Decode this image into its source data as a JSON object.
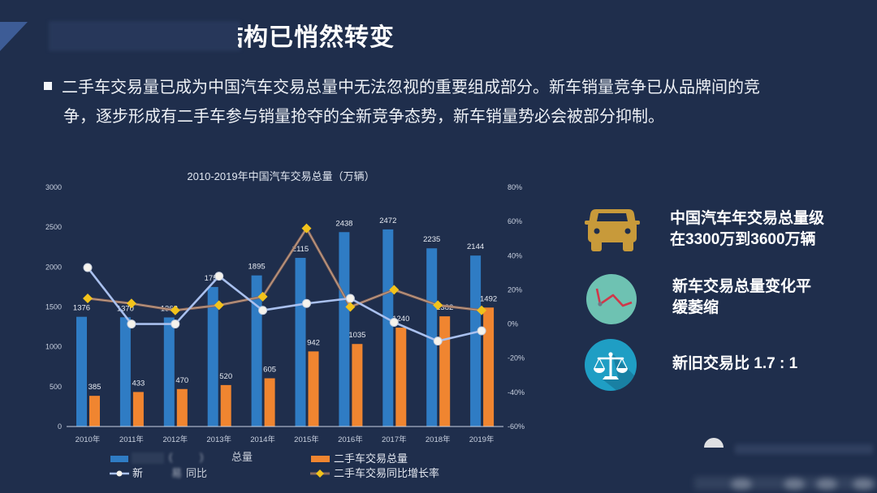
{
  "heading": {
    "partial_char": "结",
    "text": "构已悄然转变"
  },
  "bullet_text": {
    "lines": [
      "二手车交易量已成为中国汽车交易总量中无法忽视的重要组成部分。新车销量竞争已从品牌间的竞",
      "争，逐步形成有二手车参与销量抢夺的全新竞争态势，新车销量势必会被部分抑制。"
    ]
  },
  "chart_data": {
    "type": "bar",
    "title": "2010-2019年中国汽车交易总量（万辆）",
    "xlabel": "",
    "ylabel": "",
    "categories": [
      "2010年",
      "2011年",
      "2012年",
      "2013年",
      "2014年",
      "2015年",
      "2016年",
      "2017年",
      "2018年",
      "2019年"
    ],
    "ylim": [
      0,
      3000
    ],
    "yticks": [
      0,
      500,
      1000,
      1500,
      2000,
      2500,
      3000
    ],
    "y2lim": [
      -60,
      80
    ],
    "y2ticks": [
      -60,
      -40,
      -20,
      0,
      20,
      40,
      60,
      80
    ],
    "y2tick_labels": [
      "-60%",
      "-40%",
      "-20%",
      "0%",
      "20%",
      "40%",
      "60%",
      "80%"
    ],
    "grid": false,
    "legend_position": "bottom",
    "series": [
      {
        "name": "总量",
        "type": "bar",
        "axis": "left",
        "color": "#2f7cc4",
        "values": [
          1376,
          1370,
          1368,
          1750,
          1895,
          2115,
          2438,
          2472,
          2235,
          2144
        ]
      },
      {
        "name": "二手车交易总量",
        "type": "bar",
        "axis": "left",
        "color": "#f08530",
        "values": [
          385,
          433,
          470,
          520,
          605,
          942,
          1035,
          1240,
          1382,
          1492
        ]
      },
      {
        "name": "新 易 同比",
        "type": "line",
        "axis": "right",
        "unit": "%",
        "color": "#a9c0ee",
        "values": [
          33,
          0,
          0,
          28,
          8,
          12,
          15,
          1,
          -10,
          -4
        ]
      },
      {
        "name": "二手车交易同比增长率",
        "type": "line",
        "axis": "right",
        "unit": "%",
        "color": "#f2c21b",
        "values": [
          15,
          12,
          8,
          11,
          16,
          56,
          10,
          20,
          11,
          8
        ]
      }
    ]
  },
  "legend": {
    "new_total_fragments": [
      "(",
      ")",
      "总量"
    ],
    "new_growth_fragments": [
      "新",
      "易",
      "同比"
    ],
    "used_total": "二手车交易总量",
    "used_growth": "二手车交易同比增长率"
  },
  "highlights": [
    {
      "icon": "car-icon",
      "color": "#c89a3a",
      "lines": [
        "中国汽车年交易总量级",
        "在3300万到3600万辆"
      ]
    },
    {
      "icon": "declining-trend-icon",
      "color": "#6ec2b2",
      "lines": [
        "新车交易总量变化平",
        "缓萎缩"
      ]
    },
    {
      "icon": "balance-scale-icon",
      "color": "#1f9ec4",
      "lines": [
        "新旧交易比 1.7 : 1"
      ]
    }
  ],
  "colors": {
    "background": "#1f2e4c",
    "bar_new": "#2f7cc4",
    "bar_used": "#f08530",
    "line_new_growth": "#a9c0ee",
    "line_used_growth_marker": "#f2c21b"
  }
}
